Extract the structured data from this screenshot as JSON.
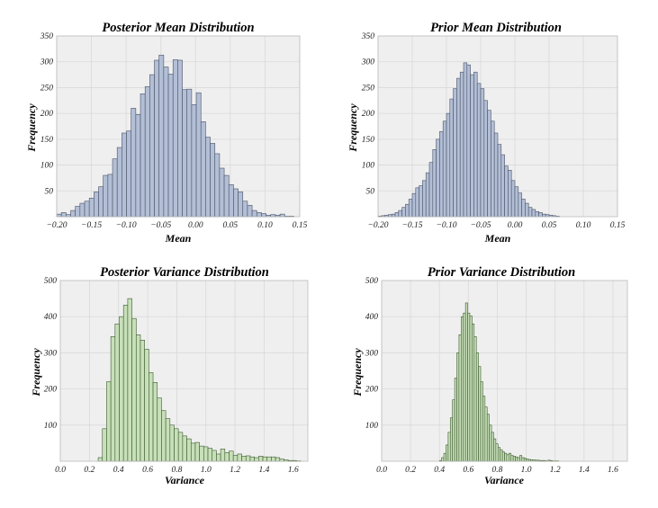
{
  "chart_data": [
    {
      "type": "bar",
      "title": "Posterior Mean Distribution",
      "xlabel": "Mean",
      "ylabel": "Frequency",
      "color": "#b3bfd6",
      "edge_color": "#4a5366",
      "background": "#efefef",
      "grid": true,
      "xlim": [
        -0.2,
        0.15
      ],
      "ylim": [
        0,
        350
      ],
      "x_ticks": [
        "−0.20",
        "−0.15",
        "−0.10",
        "−0.05",
        "0.00",
        "0.05",
        "0.10",
        "0.15"
      ],
      "y_ticks": [
        "50",
        "100",
        "150",
        "200",
        "250",
        "300",
        "350"
      ],
      "bin_start": -0.2,
      "bin_width": 0.0067,
      "values": [
        5,
        8,
        4,
        12,
        20,
        26,
        30,
        36,
        48,
        58,
        80,
        82,
        112,
        134,
        162,
        166,
        210,
        198,
        238,
        252,
        275,
        303,
        313,
        290,
        276,
        304,
        303,
        246,
        247,
        217,
        240,
        184,
        154,
        142,
        122,
        94,
        80,
        62,
        54,
        48,
        30,
        22,
        12,
        8,
        6,
        3,
        4,
        3,
        5,
        1,
        1
      ]
    },
    {
      "type": "bar",
      "title": "Prior Mean Distribution",
      "xlabel": "Mean",
      "ylabel": "Frequency",
      "color": "#b3bfd6",
      "edge_color": "#4a5366",
      "background": "#efefef",
      "grid": true,
      "xlim": [
        -0.2,
        0.15
      ],
      "ylim": [
        0,
        350
      ],
      "x_ticks": [
        "−0.20",
        "−0.15",
        "−0.10",
        "−0.05",
        "0.00",
        "0.05",
        "0.10",
        "0.15"
      ],
      "y_ticks": [
        "50",
        "100",
        "150",
        "200",
        "250",
        "300",
        "350"
      ],
      "bin_start": -0.2,
      "bin_width": 0.005,
      "values": [
        1,
        2,
        3,
        4,
        5,
        8,
        12,
        18,
        24,
        34,
        45,
        56,
        60,
        70,
        85,
        105,
        130,
        150,
        165,
        185,
        200,
        228,
        248,
        268,
        280,
        298,
        294,
        275,
        280,
        258,
        248,
        225,
        206,
        185,
        162,
        140,
        120,
        98,
        90,
        70,
        58,
        46,
        34,
        26,
        18,
        14,
        10,
        8,
        5,
        4,
        3,
        2,
        1
      ]
    },
    {
      "type": "bar",
      "title": "Posterior Variance Distribution",
      "xlabel": "Variance",
      "ylabel": "Frequency",
      "color": "#c8e0ba",
      "edge_color": "#3c5a2e",
      "background": "#efefef",
      "grid": true,
      "xlim": [
        0.0,
        1.7
      ],
      "ylim": [
        0,
        500
      ],
      "x_ticks": [
        "0.0",
        "0.2",
        "0.4",
        "0.6",
        "0.8",
        "1.0",
        "1.2",
        "1.4",
        "1.6"
      ],
      "y_ticks": [
        "100",
        "200",
        "300",
        "400",
        "500"
      ],
      "bin_start": 0.26,
      "bin_width": 0.029,
      "values": [
        10,
        90,
        220,
        345,
        380,
        400,
        432,
        450,
        395,
        350,
        335,
        310,
        245,
        218,
        175,
        140,
        118,
        100,
        90,
        80,
        70,
        62,
        50,
        52,
        42,
        40,
        36,
        30,
        20,
        34,
        24,
        28,
        16,
        20,
        14,
        15,
        12,
        10,
        14,
        12,
        12,
        12,
        10,
        6,
        4,
        2,
        2,
        1
      ]
    },
    {
      "type": "bar",
      "title": "Prior Variance Distribution",
      "xlabel": "Variance",
      "ylabel": "Frequency",
      "color": "#c8e0ba",
      "edge_color": "#3c5a2e",
      "background": "#efefef",
      "grid": true,
      "xlim": [
        0.0,
        1.7
      ],
      "ylim": [
        0,
        500
      ],
      "x_ticks": [
        "0.0",
        "0.2",
        "0.4",
        "0.6",
        "0.8",
        "1.0",
        "1.2",
        "1.4",
        "1.6"
      ],
      "y_ticks": [
        "100",
        "200",
        "300",
        "400",
        "500"
      ],
      "bin_start": 0.4,
      "bin_width": 0.015,
      "values": [
        2,
        10,
        22,
        45,
        80,
        120,
        170,
        230,
        300,
        350,
        400,
        410,
        438,
        410,
        402,
        380,
        345,
        300,
        262,
        220,
        180,
        150,
        130,
        100,
        80,
        62,
        48,
        38,
        32,
        26,
        22,
        18,
        22,
        16,
        14,
        12,
        10,
        16,
        10,
        8,
        6,
        5,
        4,
        4,
        3,
        3,
        2,
        2,
        2,
        1,
        3,
        2,
        1,
        1,
        1
      ]
    }
  ]
}
